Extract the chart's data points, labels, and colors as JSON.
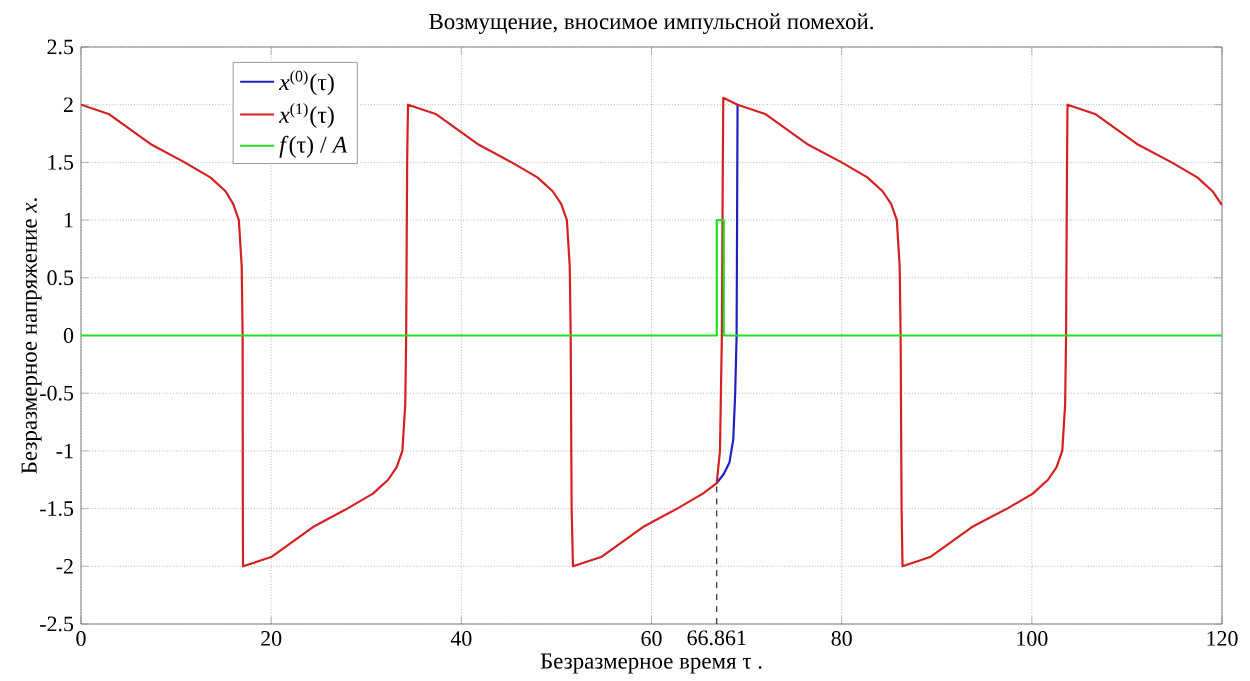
{
  "chart_data": {
    "type": "line",
    "title": "Возмущение, вносимое импульсной помехой.",
    "xlabel": "Безразмерное время τ .",
    "ylabel": "Безразмерное напряжение *x*.",
    "xlim": [
      0,
      120
    ],
    "ylim": [
      -2.5,
      2.5
    ],
    "xticks": [
      0,
      20,
      40,
      60,
      80,
      100,
      120
    ],
    "yticks": [
      -2.5,
      -2,
      -1.5,
      -1,
      -0.5,
      0,
      0.5,
      1,
      1.5,
      2,
      2.5
    ],
    "grid": true,
    "legend": "top left",
    "marker": "none",
    "series": [
      {
        "name": "*x*$^{(0)}$(τ)",
        "color": "#2020c0",
        "x": [
          66.861,
          67.6,
          68.2,
          68.6,
          68.8,
          68.95,
          69.0,
          69.05
        ],
        "values": [
          -1.28,
          -1.2,
          -1.1,
          -0.9,
          -0.5,
          0,
          1.0,
          2.0
        ]
      },
      {
        "name": "*x*$^{(1)}$(τ)",
        "color": "#d42020",
        "x": [
          0,
          2.9,
          7.3,
          10.9,
          13.6,
          15.2,
          16.0,
          16.6,
          16.9,
          17.0,
          17.02,
          17.04,
          20,
          24.4,
          28,
          30.7,
          32.3,
          33.2,
          33.8,
          34.1,
          34.2,
          34.3,
          34.39,
          37.3,
          41.7,
          45.3,
          48,
          49.6,
          50.5,
          51.1,
          51.4,
          51.5,
          51.6,
          51.74,
          54.7,
          59.1,
          62.7,
          65.4,
          66.861,
          67.2,
          67.4,
          67.5,
          67.55,
          69.05,
          71.95,
          76.35,
          80,
          82.7,
          84.3,
          85.2,
          85.8,
          86.1,
          86.2,
          86.3,
          86.4,
          89.3,
          93.7,
          97.4,
          100.1,
          101.7,
          102.6,
          103.2,
          103.5,
          103.6,
          103.7,
          103.75,
          106.65,
          111.05,
          114.7,
          117.4,
          119,
          120
        ],
        "values": [
          2.0,
          1.92,
          1.66,
          1.5,
          1.37,
          1.25,
          1.14,
          1.0,
          0.6,
          0,
          -1.5,
          -2.0,
          -1.92,
          -1.66,
          -1.5,
          -1.37,
          -1.25,
          -1.14,
          -1.0,
          -0.6,
          0,
          1.5,
          2.0,
          1.92,
          1.66,
          1.5,
          1.37,
          1.25,
          1.14,
          1.0,
          0.6,
          0,
          -1.5,
          -2.0,
          -1.92,
          -1.66,
          -1.5,
          -1.37,
          -1.28,
          -1.0,
          0,
          1.5,
          2.06,
          2.0,
          1.92,
          1.66,
          1.5,
          1.37,
          1.25,
          1.14,
          1.0,
          0.6,
          0,
          -1.5,
          -2.0,
          -1.92,
          -1.66,
          -1.5,
          -1.37,
          -1.25,
          -1.14,
          -1.0,
          -0.6,
          0,
          1.5,
          2.0,
          1.92,
          1.66,
          1.5,
          1.37,
          1.25,
          1.13
        ]
      },
      {
        "name": "*f*(τ) / *A*",
        "color": "#22dd22",
        "x": [
          0,
          66.861,
          66.861,
          67.6,
          67.6,
          120
        ],
        "values": [
          0,
          0,
          1,
          1,
          0,
          0
        ]
      }
    ],
    "ref_lines": [
      {
        "axis": "x",
        "value": 66.861,
        "label": "66.861",
        "color": "#000000",
        "line_style": "dashed"
      }
    ]
  }
}
